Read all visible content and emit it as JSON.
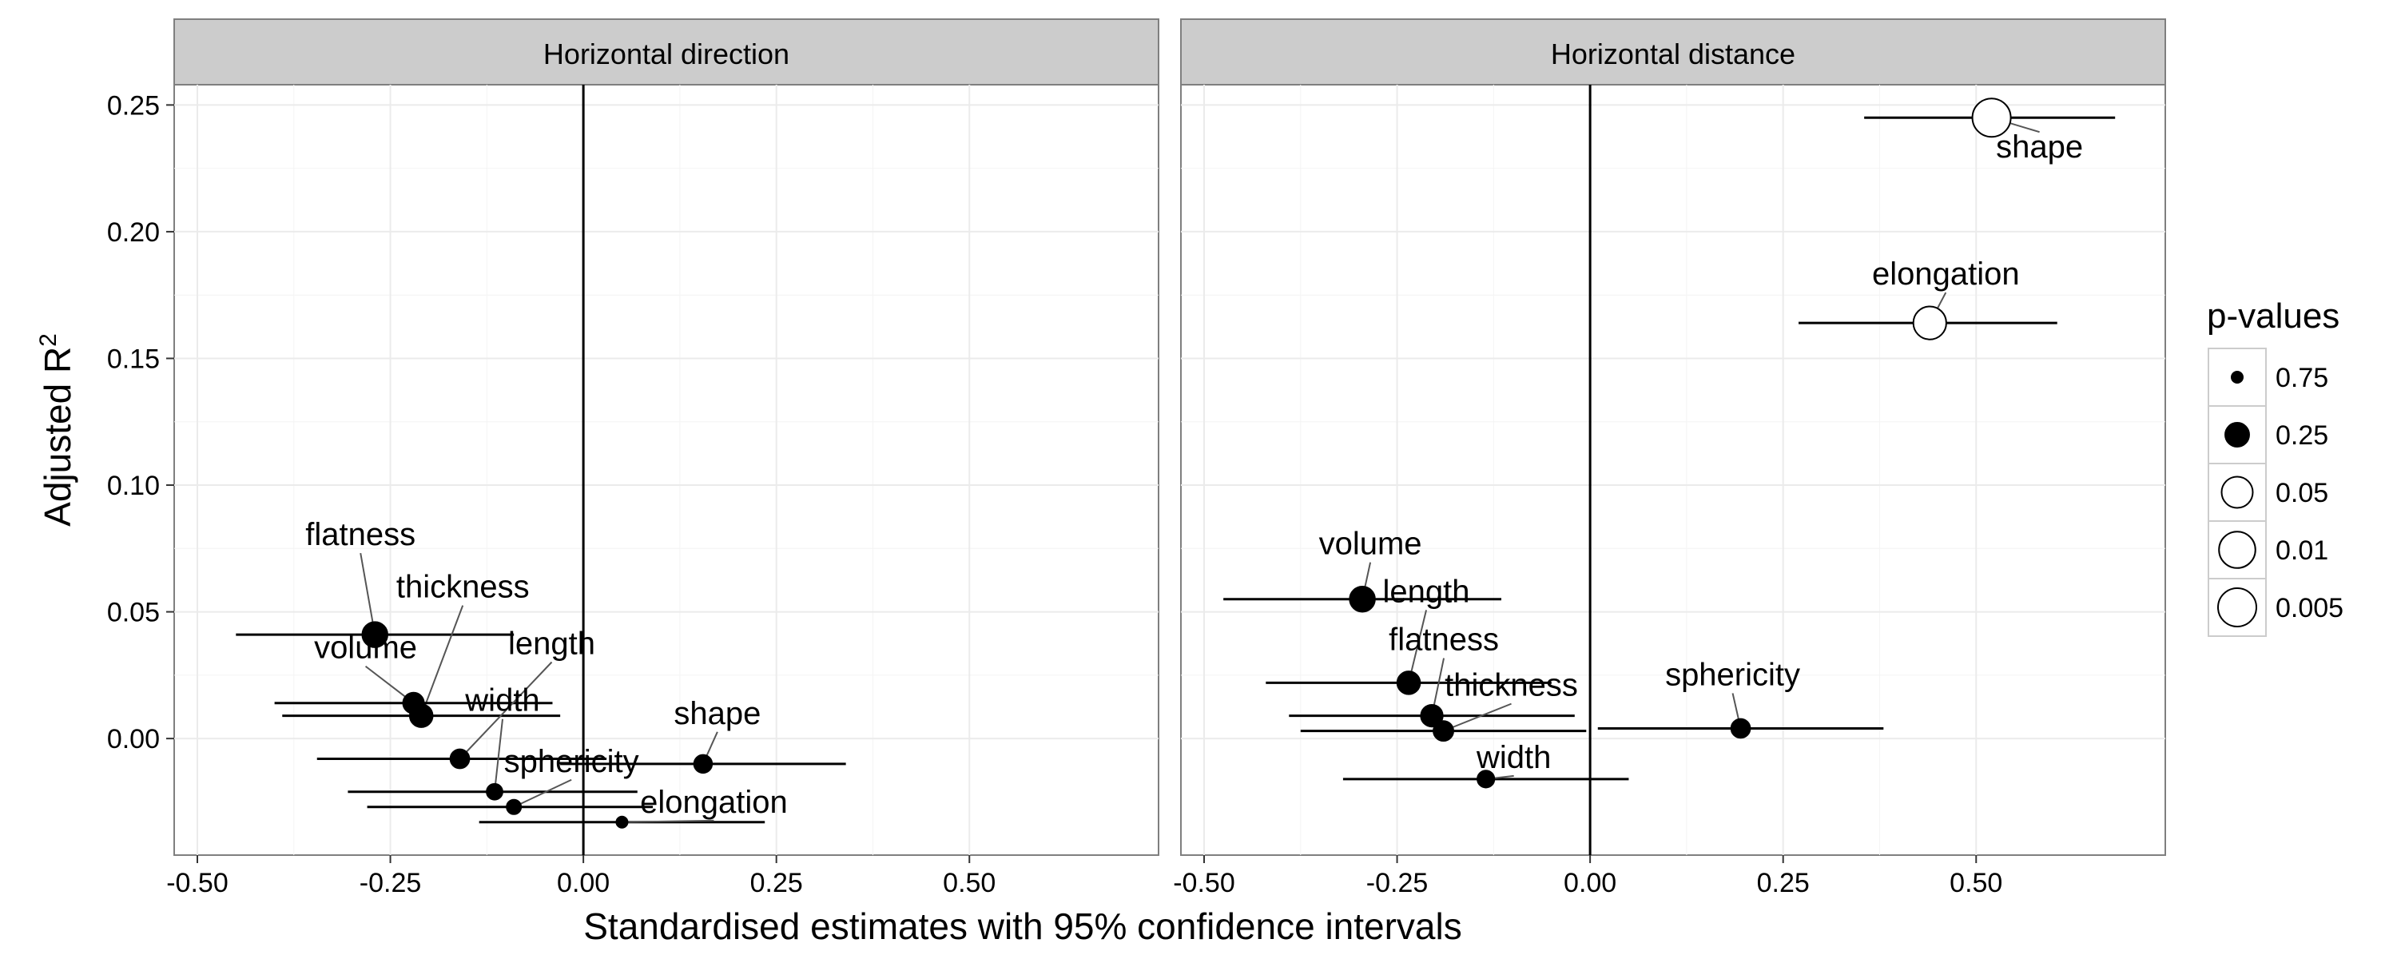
{
  "chart_data": {
    "type": "scatter",
    "xlabel": "Standardised estimates with 95% confidence intervals",
    "ylabel": "Adjusted R",
    "ylabel_superscript": "2",
    "xlim": [
      -0.53,
      0.745
    ],
    "ylim": [
      -0.046,
      0.258
    ],
    "x_ticks": [
      -0.5,
      -0.25,
      0.0,
      0.25,
      0.5
    ],
    "x_tick_labels": [
      "-0.50",
      "-0.25",
      "0.00",
      "0.25",
      "0.50"
    ],
    "y_ticks": [
      0.0,
      0.05,
      0.1,
      0.15,
      0.2,
      0.25
    ],
    "y_tick_labels": [
      "0.00",
      "0.05",
      "0.10",
      "0.15",
      "0.20",
      "0.25"
    ],
    "grid": true,
    "legend": {
      "title": "p-values",
      "position": "right",
      "entries": [
        {
          "label": "0.75",
          "p": 0.75
        },
        {
          "label": "0.25",
          "p": 0.25
        },
        {
          "label": "0.05",
          "p": 0.05
        },
        {
          "label": "0.01",
          "p": 0.01
        },
        {
          "label": "0.005",
          "p": 0.005
        }
      ]
    },
    "panels": [
      {
        "title": "Horizontal direction",
        "points": [
          {
            "label": "flatness",
            "x": -0.27,
            "lo": -0.45,
            "hi": -0.09,
            "y": 0.041,
            "p": 0.2
          },
          {
            "label": "thickness",
            "x": -0.21,
            "lo": -0.39,
            "hi": -0.03,
            "y": 0.009,
            "p": 0.3
          },
          {
            "label": "volume",
            "x": -0.22,
            "lo": -0.4,
            "hi": -0.04,
            "y": 0.014,
            "p": 0.4
          },
          {
            "label": "length",
            "x": -0.16,
            "lo": -0.345,
            "hi": 0.03,
            "y": -0.008,
            "p": 0.5
          },
          {
            "label": "width",
            "x": -0.115,
            "lo": -0.305,
            "hi": 0.07,
            "y": -0.021,
            "p": 0.65
          },
          {
            "label": "sphericity",
            "x": -0.09,
            "lo": -0.28,
            "hi": 0.09,
            "y": -0.027,
            "p": 0.7
          },
          {
            "label": "shape",
            "x": 0.155,
            "lo": -0.03,
            "hi": 0.34,
            "y": -0.01,
            "p": 0.55
          },
          {
            "label": "elongation",
            "x": 0.05,
            "lo": -0.135,
            "hi": 0.235,
            "y": -0.033,
            "p": 0.78
          }
        ]
      },
      {
        "title": "Horizontal distance",
        "points": [
          {
            "label": "shape",
            "x": 0.52,
            "lo": 0.355,
            "hi": 0.68,
            "y": 0.245,
            "p": 0.005
          },
          {
            "label": "elongation",
            "x": 0.44,
            "lo": 0.27,
            "hi": 0.605,
            "y": 0.164,
            "p": 0.03
          },
          {
            "label": "volume",
            "x": -0.295,
            "lo": -0.475,
            "hi": -0.115,
            "y": 0.055,
            "p": 0.2
          },
          {
            "label": "length",
            "x": -0.235,
            "lo": -0.42,
            "hi": -0.05,
            "y": 0.022,
            "p": 0.3
          },
          {
            "label": "flatness",
            "x": -0.205,
            "lo": -0.39,
            "hi": -0.02,
            "y": 0.009,
            "p": 0.35
          },
          {
            "label": "thickness",
            "x": -0.19,
            "lo": -0.375,
            "hi": -0.005,
            "y": 0.003,
            "p": 0.45
          },
          {
            "label": "sphericity",
            "x": 0.195,
            "lo": 0.01,
            "hi": 0.38,
            "y": 0.004,
            "p": 0.5
          },
          {
            "label": "width",
            "x": -0.135,
            "lo": -0.32,
            "hi": 0.05,
            "y": -0.016,
            "p": 0.6
          }
        ]
      }
    ]
  }
}
